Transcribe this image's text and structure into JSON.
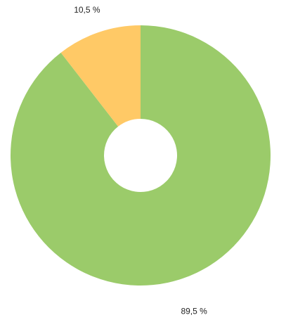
{
  "chart_data": {
    "type": "donut",
    "values": [
      89.5,
      10.5
    ],
    "value_labels": [
      "89,5 %",
      "10,5 %"
    ],
    "colors": [
      "#9bcb6a",
      "#ffc966"
    ]
  }
}
